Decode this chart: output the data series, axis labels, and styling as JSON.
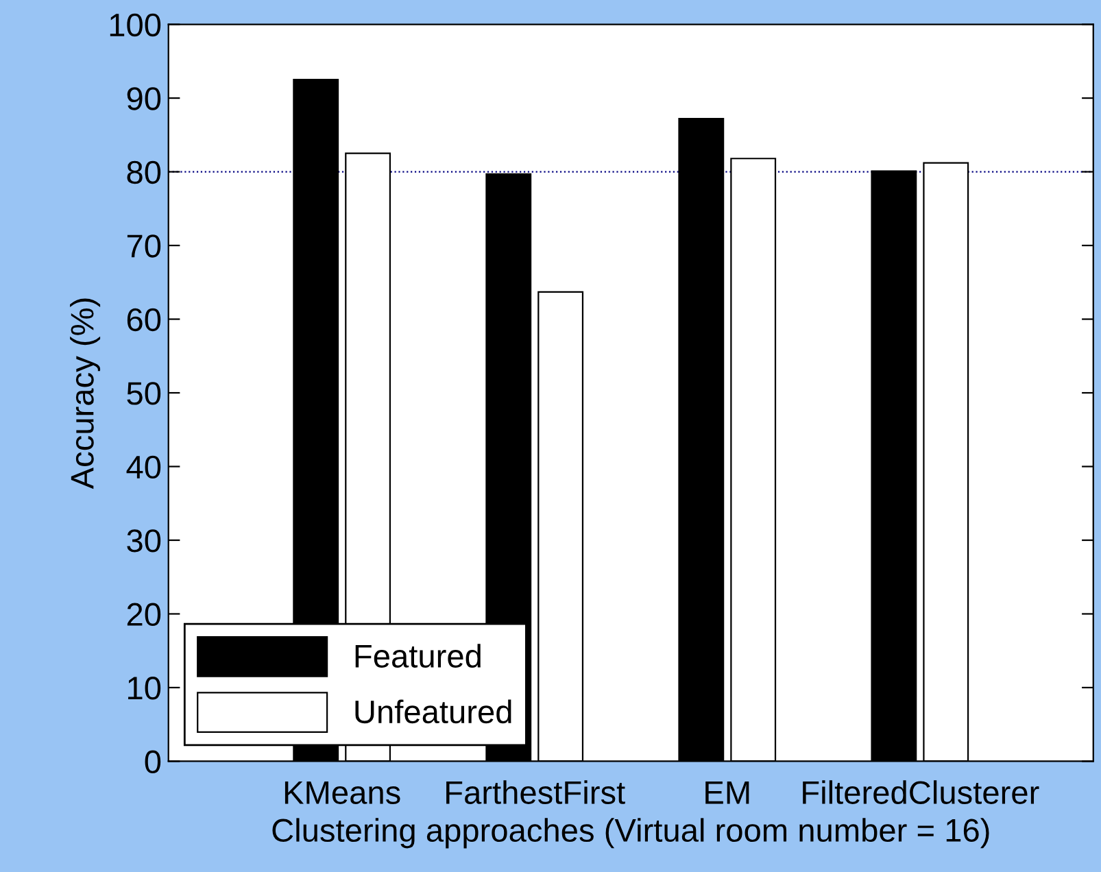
{
  "chart_data": {
    "type": "bar",
    "xlabel": "Clustering approaches (Virtual room number = 16)",
    "ylabel": "Accuracy (%)",
    "categories": [
      "KMeans",
      "FarthestFirst",
      "EM",
      "FilteredClusterer"
    ],
    "series": [
      {
        "name": "Featured",
        "color": "#000000",
        "values": [
          92.5,
          79.7,
          87.2,
          80.1
        ]
      },
      {
        "name": "Unfeatured",
        "color": "#ffffff",
        "values": [
          82.5,
          63.7,
          81.8,
          81.2
        ]
      }
    ],
    "ylim": [
      0,
      100
    ],
    "yticks": [
      0,
      10,
      20,
      30,
      40,
      50,
      60,
      70,
      80,
      90,
      100
    ],
    "ref_lines": [
      {
        "axis": "y",
        "value": 80,
        "color": "#000080",
        "line_style": "dotted"
      }
    ],
    "legend": "bottom left",
    "grid": false
  }
}
